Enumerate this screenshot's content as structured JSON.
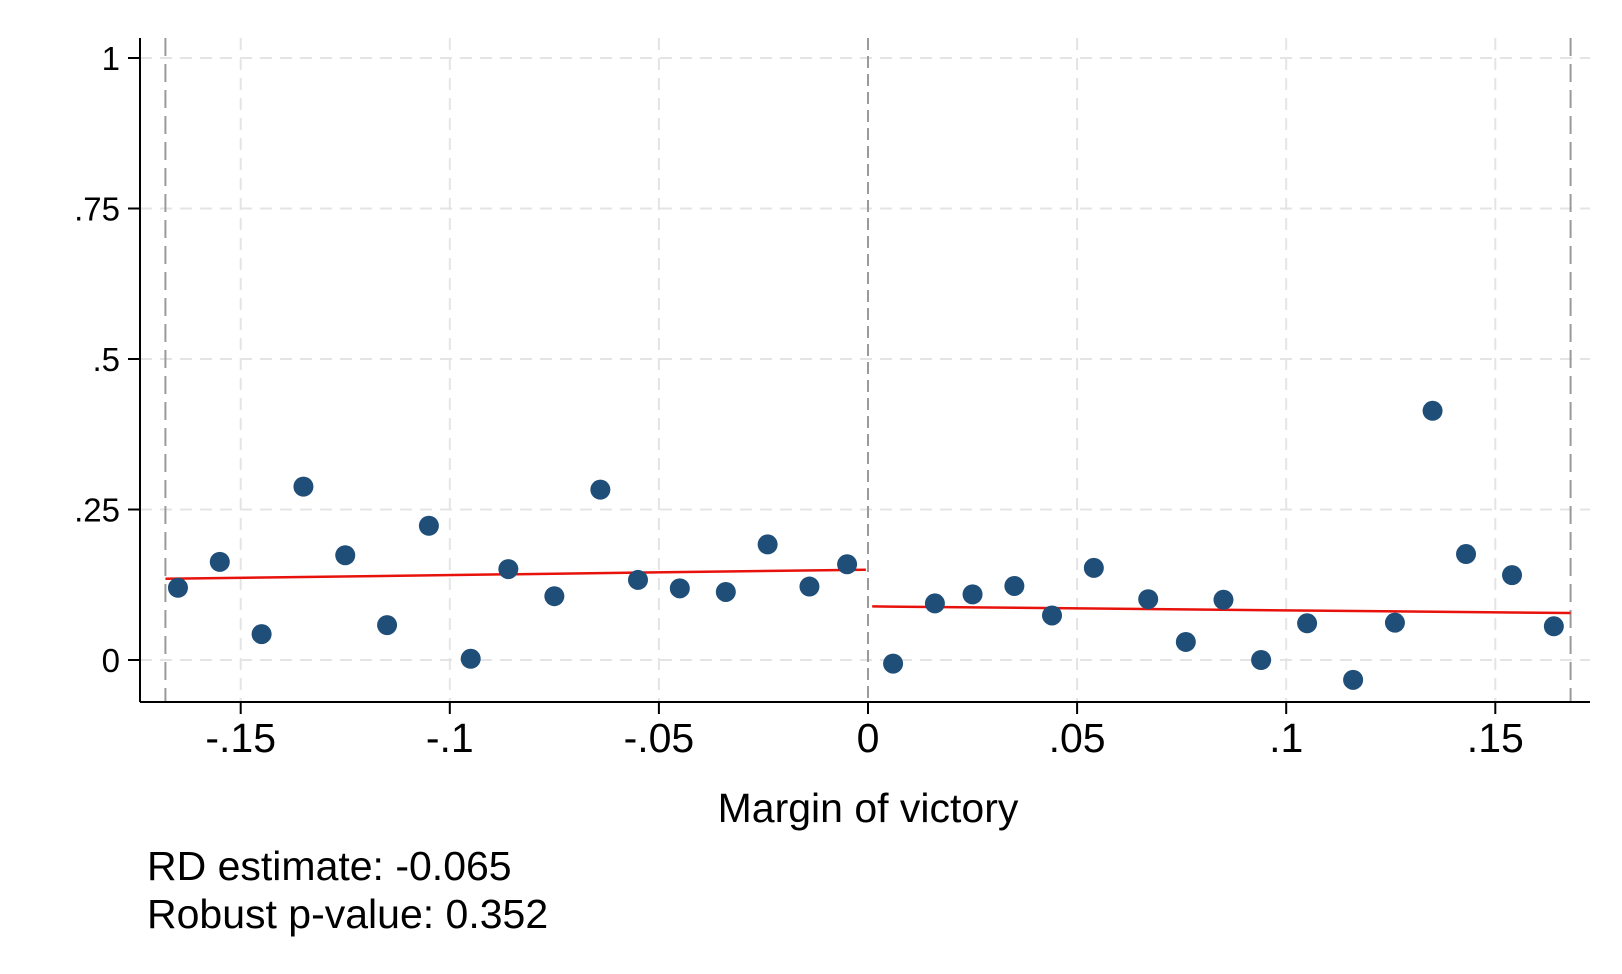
{
  "chart_data": {
    "type": "scatter",
    "title": "",
    "xlabel": "Margin of victory",
    "ylabel": "",
    "xlim": [
      -0.17,
      0.17
    ],
    "ylim": [
      -0.06,
      1.03
    ],
    "x_ticks": [
      -0.15,
      -0.1,
      -0.05,
      0,
      0.05,
      0.1,
      0.15
    ],
    "x_tick_labels": [
      "-.15",
      "-.1",
      "-.05",
      "0",
      ".05",
      ".1",
      ".15"
    ],
    "y_ticks": [
      0,
      0.25,
      0.5,
      0.75,
      1
    ],
    "y_tick_labels": [
      "0",
      ".25",
      ".5",
      ".75",
      "1"
    ],
    "grid": true,
    "threshold": 0,
    "bandwidth_lines": [
      -0.168,
      0.168
    ],
    "marker_color": "#1f4e79",
    "fit_color": "#e8120c",
    "series": [
      {
        "points": [
          [
            -0.165,
            0.12
          ],
          [
            -0.155,
            0.163
          ],
          [
            -0.145,
            0.043
          ],
          [
            -0.135,
            0.288
          ],
          [
            -0.125,
            0.174
          ],
          [
            -0.115,
            0.058
          ],
          [
            -0.105,
            0.223
          ],
          [
            -0.095,
            0.002
          ],
          [
            -0.086,
            0.151
          ],
          [
            -0.075,
            0.106
          ],
          [
            -0.064,
            0.283
          ],
          [
            -0.055,
            0.133
          ],
          [
            -0.045,
            0.119
          ],
          [
            -0.034,
            0.113
          ],
          [
            -0.024,
            0.192
          ],
          [
            -0.014,
            0.122
          ],
          [
            -0.005,
            0.159
          ]
        ]
      },
      {
        "points": [
          [
            0.006,
            -0.006
          ],
          [
            0.016,
            0.094
          ],
          [
            0.025,
            0.109
          ],
          [
            0.035,
            0.123
          ],
          [
            0.044,
            0.074
          ],
          [
            0.054,
            0.153
          ],
          [
            0.067,
            0.101
          ],
          [
            0.076,
            0.03
          ],
          [
            0.085,
            0.1
          ],
          [
            0.094,
            0.0
          ],
          [
            0.105,
            0.061
          ],
          [
            0.116,
            -0.033
          ],
          [
            0.126,
            0.062
          ],
          [
            0.135,
            0.414
          ],
          [
            0.143,
            0.176
          ],
          [
            0.154,
            0.141
          ],
          [
            0.164,
            0.056
          ]
        ]
      }
    ],
    "fit_lines": [
      {
        "x": [
          -0.168,
          -0.0005
        ],
        "y": [
          0.135,
          0.15
        ]
      },
      {
        "x": [
          0.001,
          0.168
        ],
        "y": [
          0.089,
          0.078
        ]
      }
    ],
    "annotations": [
      "RD estimate: -0.065",
      "Robust p-value: 0.352"
    ]
  }
}
